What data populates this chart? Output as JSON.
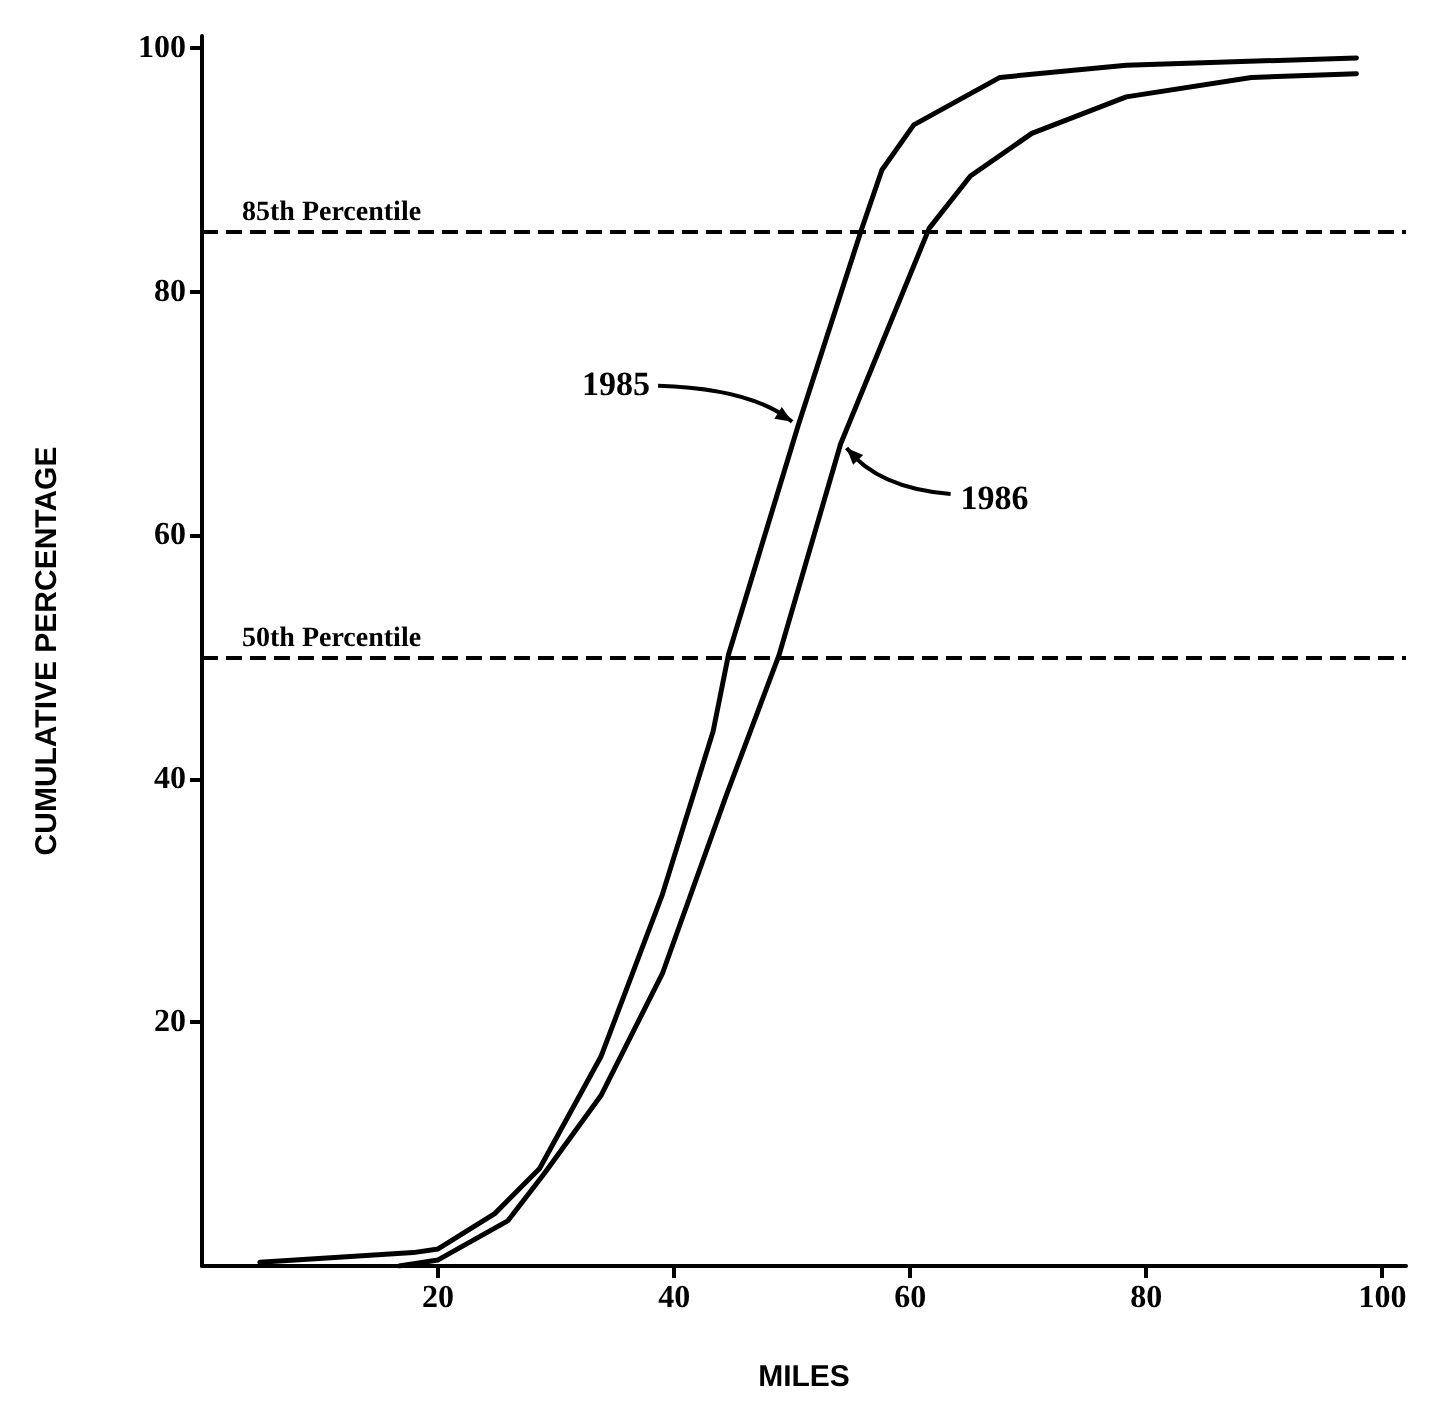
{
  "chart_data": {
    "type": "line",
    "xlabel": "MILES",
    "ylabel": "CUMULATIVE PERCENTAGE",
    "xlim": [
      0,
      102
    ],
    "ylim": [
      0,
      101
    ],
    "xticks": [
      20,
      40,
      60,
      80,
      100
    ],
    "yticks": [
      20,
      40,
      60,
      80,
      100
    ],
    "grid": false,
    "marker": "none",
    "line_style": "solid",
    "series": [
      {
        "color": "#000000",
        "x": [
          4.9,
          17.9,
          20,
          24.8,
          28.6,
          33.8,
          39,
          43.3,
          44.6,
          50.5,
          55.9,
          57.6,
          60.3,
          67.6,
          78.3,
          97.8
        ],
        "values": [
          0.3,
          1.1,
          1.4,
          4.3,
          8,
          17.2,
          30.5,
          43.9,
          50.2,
          69,
          85.2,
          90,
          93.7,
          97.6,
          98.6,
          99.2
        ]
      },
      {
        "color": "#000000",
        "x": [
          16.7,
          20,
          25.9,
          29,
          33.8,
          39,
          44.4,
          48.9,
          54.1,
          61.6,
          65.1,
          70.3,
          78.3,
          88.9,
          97.8
        ],
        "values": [
          0,
          0.5,
          3.7,
          7.6,
          14,
          24,
          38.6,
          50.2,
          67.5,
          85.2,
          89.5,
          93,
          96,
          97.6,
          97.9
        ]
      }
    ],
    "ref_lines": [
      {
        "axis": "y",
        "value": 85,
        "label": "85th Percentile",
        "color": "#000000",
        "line_style": "dashed"
      },
      {
        "axis": "y",
        "value": 50,
        "label": "50th Percentile",
        "color": "#000000",
        "line_style": "dashed"
      }
    ],
    "annotations": [
      {
        "text": "1985",
        "x": 50.5,
        "y": 69
      },
      {
        "text": "1986",
        "x": 54.1,
        "y": 67.5
      }
    ]
  }
}
